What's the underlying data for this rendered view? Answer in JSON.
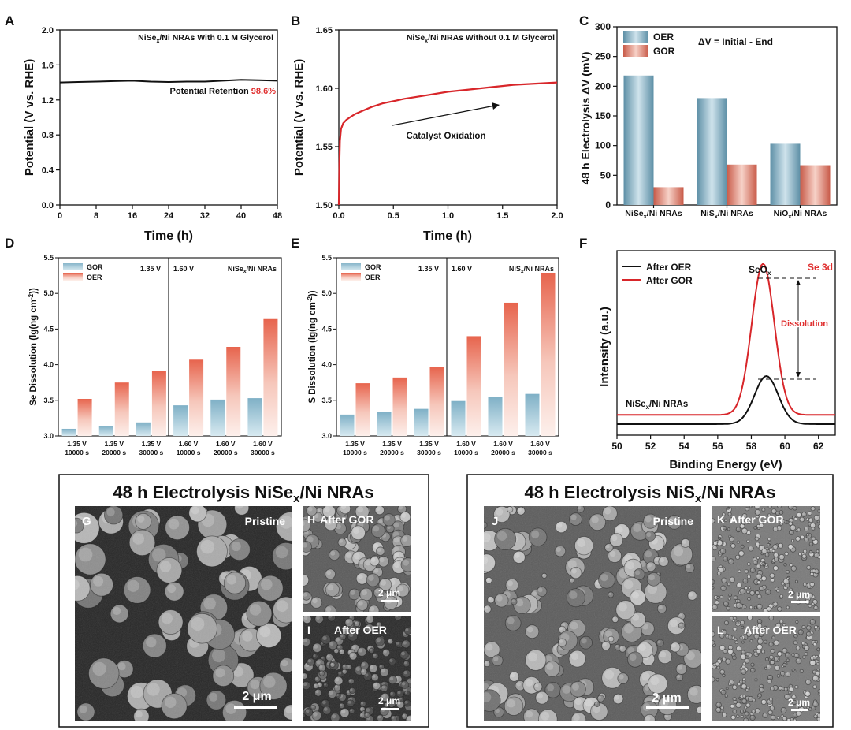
{
  "colors": {
    "oer_red": "#d94c3a",
    "oer_red_light": "#f5c6bb",
    "gor_blue": "#5a93ad",
    "gor_blue_light": "#cfe3ec",
    "red_text": "#e03030",
    "black": "#111111",
    "sem_dark": "#1c1c1c",
    "sem_mid": "#8a8a8a"
  },
  "chart_data": [
    {
      "panel": "A",
      "type": "line",
      "title": "NiSe",
      "title_sub": "x",
      "title_rest": "/Ni NRAs With 0.1 M Glycerol",
      "xlabel": "Time (h)",
      "ylabel": "Potential (V vs. RHE)",
      "xlim": [
        0,
        48
      ],
      "ylim": [
        0.0,
        2.0
      ],
      "xticks": [
        0,
        8,
        16,
        24,
        32,
        40,
        48
      ],
      "yticks": [
        0.0,
        0.4,
        0.8,
        1.2,
        1.6,
        2.0
      ],
      "ytick_labels": [
        "0.0",
        "0.4",
        "0.8",
        "1.2",
        "1.6",
        "2.0"
      ],
      "series": [
        {
          "name": "With glycerol",
          "x": [
            0,
            4,
            8,
            12,
            16,
            20,
            24,
            28,
            32,
            36,
            40,
            44,
            48
          ],
          "y": [
            1.4,
            1.405,
            1.41,
            1.415,
            1.42,
            1.41,
            1.405,
            1.41,
            1.41,
            1.42,
            1.43,
            1.425,
            1.42
          ]
        }
      ],
      "annotation_label": "Potential Retention ",
      "annotation_value": "98.6%"
    },
    {
      "panel": "B",
      "type": "line",
      "title": "NiSe",
      "title_sub": "x",
      "title_rest": "/Ni NRAs Without 0.1 M Glycerol",
      "xlabel": "Time (h)",
      "ylabel": "Potential (V vs. RHE)",
      "xlim": [
        0.0,
        2.0
      ],
      "ylim": [
        1.5,
        1.65
      ],
      "xticks": [
        0.0,
        0.5,
        1.0,
        1.5,
        2.0
      ],
      "xtick_labels": [
        "0.0",
        "0.5",
        "1.0",
        "1.5",
        "2.0"
      ],
      "yticks": [
        1.5,
        1.55,
        1.6,
        1.65
      ],
      "ytick_labels": [
        "1.50",
        "1.55",
        "1.60",
        "1.65"
      ],
      "series": [
        {
          "name": "Without glycerol",
          "x": [
            0.0,
            0.005,
            0.01,
            0.02,
            0.04,
            0.07,
            0.1,
            0.15,
            0.2,
            0.3,
            0.4,
            0.5,
            0.6,
            0.8,
            1.0,
            1.2,
            1.4,
            1.6,
            1.8,
            2.0
          ],
          "y": [
            1.5,
            1.535,
            1.555,
            1.565,
            1.57,
            1.573,
            1.575,
            1.578,
            1.58,
            1.584,
            1.587,
            1.589,
            1.591,
            1.594,
            1.597,
            1.599,
            1.601,
            1.603,
            1.604,
            1.605
          ]
        }
      ],
      "annotation": "Catalyst Oxidation"
    },
    {
      "panel": "C",
      "type": "bar",
      "title": "ΔV = Initial - End",
      "ylabel": "48 h Electrolysis ΔV (mV)",
      "ylim": [
        0,
        300
      ],
      "yticks": [
        0,
        50,
        100,
        150,
        200,
        250,
        300
      ],
      "categories": [
        {
          "main": "NiSe",
          "sub": "x",
          "rest": "/Ni NRAs"
        },
        {
          "main": "NiS",
          "sub": "x",
          "rest": "/Ni NRAs"
        },
        {
          "main": "NiO",
          "sub": "x",
          "rest": "/Ni NRAs"
        }
      ],
      "series": [
        {
          "name": "OER",
          "values": [
            218,
            180,
            103
          ]
        },
        {
          "name": "GOR",
          "values": [
            30,
            68,
            67
          ]
        }
      ]
    },
    {
      "panel": "D",
      "type": "bar",
      "ylabel": "Se Dissolution (lg(ng cm",
      "ylabel_sup": "-2",
      "ylabel_end": "))",
      "ylim": [
        3.0,
        5.5
      ],
      "yticks": [
        3.0,
        3.5,
        4.0,
        4.5,
        5.0,
        5.5
      ],
      "ytick_labels": [
        "3.0",
        "3.5",
        "4.0",
        "4.5",
        "5.0",
        "5.5"
      ],
      "region_labels": [
        "1.35 V",
        "1.60 V"
      ],
      "sample": "NiSe",
      "sample_sub": "x",
      "sample_rest": "/Ni NRAs",
      "categories": [
        [
          "1.35 V",
          "10000 s"
        ],
        [
          "1.35 V",
          "20000 s"
        ],
        [
          "1.35 V",
          "30000 s"
        ],
        [
          "1.60 V",
          "10000 s"
        ],
        [
          "1.60 V",
          "20000 s"
        ],
        [
          "1.60 V",
          "30000 s"
        ]
      ],
      "series": [
        {
          "name": "GOR",
          "values": [
            3.1,
            3.14,
            3.19,
            3.43,
            3.51,
            3.53
          ]
        },
        {
          "name": "OER",
          "values": [
            3.52,
            3.75,
            3.91,
            4.07,
            4.25,
            4.64
          ]
        }
      ]
    },
    {
      "panel": "E",
      "type": "bar",
      "ylabel": "S Dissolution (lg(ng cm",
      "ylabel_sup": "-2",
      "ylabel_end": "))",
      "ylim": [
        3.0,
        5.5
      ],
      "yticks": [
        3.0,
        3.5,
        4.0,
        4.5,
        5.0,
        5.5
      ],
      "ytick_labels": [
        "3.0",
        "3.5",
        "4.0",
        "4.5",
        "5.0",
        "5.5"
      ],
      "region_labels": [
        "1.35 V",
        "1.60 V"
      ],
      "sample": "NiS",
      "sample_sub": "x",
      "sample_rest": "/Ni NRAs",
      "categories": [
        [
          "1.35 V",
          "10000 s"
        ],
        [
          "1.35 V",
          "20000 s"
        ],
        [
          "1.35 V",
          "30000 s"
        ],
        [
          "1.60 V",
          "10000 s"
        ],
        [
          "1.60 V",
          "20000 s"
        ],
        [
          "1.60 V",
          "30000 s"
        ]
      ],
      "series": [
        {
          "name": "GOR",
          "values": [
            3.3,
            3.34,
            3.38,
            3.49,
            3.55,
            3.59
          ]
        },
        {
          "name": "OER",
          "values": [
            3.74,
            3.82,
            3.97,
            4.4,
            4.87,
            5.29
          ]
        }
      ]
    },
    {
      "panel": "F",
      "type": "line",
      "xlabel": "Binding Energy (eV)",
      "ylabel": "Intensity (a.u.)",
      "xlim": [
        50,
        63
      ],
      "xticks": [
        50,
        52,
        54,
        56,
        58,
        60,
        62
      ],
      "series": [
        {
          "name": "After OER",
          "center": 58.9,
          "width": 1.0,
          "height": 0.26,
          "baseline": 0.06
        },
        {
          "name": "After GOR",
          "center": 58.7,
          "width": 0.95,
          "height": 0.82,
          "baseline": 0.11
        }
      ],
      "annotations": {
        "peak": "SeO",
        "peak_sub": "x",
        "region": "Se 3d",
        "arrow": "Dissolution",
        "sample": "NiSe",
        "sample_sub": "x",
        "sample_rest": "/Ni NRAs"
      }
    }
  ],
  "panel_letters": [
    "A",
    "B",
    "C",
    "D",
    "E",
    "F",
    "G",
    "H",
    "I",
    "J",
    "K",
    "L"
  ],
  "sem_left": {
    "title": "48 h Electrolysis NiSe",
    "title_sub": "x",
    "title_rest": "/Ni NRAs",
    "main_label": "Pristine",
    "gor_label": "After GOR",
    "oer_label": "After OER",
    "scale_large": "2 μm",
    "scale_small": "2 μm"
  },
  "sem_right": {
    "title": "48 h Electrolysis NiS",
    "title_sub": "x",
    "title_rest": "/Ni NRAs",
    "main_label": "Pristine",
    "gor_label": "After GOR",
    "oer_label": "After OER",
    "scale_large": "2 μm",
    "scale_small": "2 μm"
  }
}
